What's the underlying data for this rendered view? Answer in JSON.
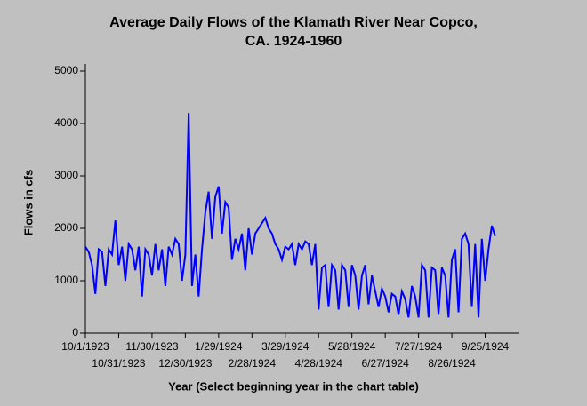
{
  "chart_data": {
    "type": "line",
    "title": "Average Daily Flows of the Klamath River Near Copco,",
    "subtitle": "CA. 1924-1960",
    "x_label": "Year (Select beginning year in the chart table)",
    "y_label": "Flows in cfs",
    "x": [
      0,
      3,
      6,
      9,
      12,
      15,
      18,
      21,
      24,
      27,
      30,
      33,
      36,
      39,
      42,
      45,
      48,
      51,
      54,
      57,
      60,
      63,
      66,
      69,
      72,
      75,
      78,
      81,
      84,
      87,
      90,
      93,
      96,
      99,
      102,
      105,
      108,
      111,
      114,
      117,
      120,
      123,
      126,
      129,
      132,
      135,
      138,
      141,
      144,
      147,
      150,
      153,
      156,
      159,
      162,
      165,
      168,
      171,
      174,
      177,
      180,
      183,
      186,
      189,
      192,
      195,
      198,
      201,
      204,
      207,
      210,
      213,
      216,
      219,
      222,
      225,
      228,
      231,
      234,
      237,
      240,
      243,
      246,
      249,
      252,
      255,
      258,
      261,
      264,
      267,
      270,
      273,
      276,
      279,
      282,
      285,
      288,
      291,
      294,
      297,
      300,
      303,
      306,
      309,
      312,
      315,
      318,
      321,
      324,
      327,
      330,
      333,
      336,
      339,
      342,
      345,
      348,
      351,
      354,
      357,
      360,
      363,
      366,
      369
    ],
    "series": [
      {
        "name": "Flows",
        "color": "#0000ff",
        "values": [
          1650,
          1550,
          1300,
          750,
          1600,
          1550,
          900,
          1600,
          1500,
          2150,
          1300,
          1650,
          1000,
          1700,
          1600,
          1200,
          1650,
          700,
          1600,
          1500,
          1100,
          1700,
          1200,
          1600,
          900,
          1650,
          1500,
          1800,
          1700,
          1000,
          1500,
          4200,
          900,
          1500,
          700,
          1600,
          2300,
          2700,
          1800,
          2600,
          2800,
          1900,
          2500,
          2400,
          1400,
          1800,
          1600,
          1900,
          1200,
          2000,
          1500,
          1900,
          2000,
          2100,
          2200,
          2000,
          1900,
          1700,
          1600,
          1400,
          1650,
          1600,
          1700,
          1300,
          1700,
          1600,
          1750,
          1700,
          1300,
          1700,
          450,
          1250,
          1300,
          500,
          1300,
          1200,
          450,
          1300,
          1200,
          500,
          1300,
          1100,
          450,
          1100,
          1300,
          550,
          1100,
          800,
          500,
          850,
          700,
          400,
          750,
          700,
          350,
          800,
          650,
          300,
          900,
          700,
          300,
          1300,
          1200,
          300,
          1250,
          1200,
          350,
          1250,
          1100,
          300,
          1400,
          1600,
          400,
          1800,
          1900,
          1700,
          500,
          1700,
          300,
          1800,
          1000,
          1600,
          2050,
          1850
        ]
      }
    ],
    "xlim": [
      0,
      390
    ],
    "xticks": [
      {
        "value": 0,
        "label": "10/1/1923"
      },
      {
        "value": 30,
        "label": "10/31/1923"
      },
      {
        "value": 60,
        "label": "11/30/1923"
      },
      {
        "value": 90,
        "label": "12/30/1923"
      },
      {
        "value": 120,
        "label": "1/29/1924"
      },
      {
        "value": 150,
        "label": "2/28/1924"
      },
      {
        "value": 180,
        "label": "3/29/1924"
      },
      {
        "value": 210,
        "label": "4/28/1924"
      },
      {
        "value": 240,
        "label": "5/28/1924"
      },
      {
        "value": 270,
        "label": "6/27/1924"
      },
      {
        "value": 300,
        "label": "7/27/1924"
      },
      {
        "value": 330,
        "label": "8/26/1924"
      },
      {
        "value": 360,
        "label": "9/25/1924"
      }
    ],
    "ylim": [
      0,
      5000
    ],
    "yticks": [
      0,
      1000,
      2000,
      3000,
      4000,
      5000
    ]
  }
}
